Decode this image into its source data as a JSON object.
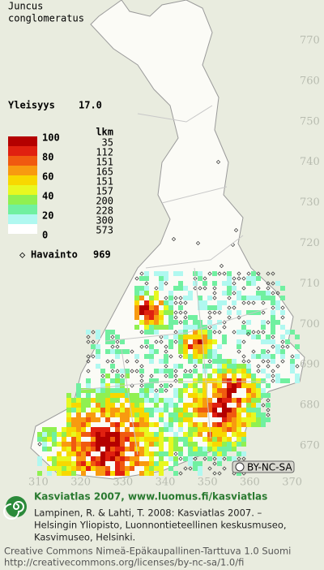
{
  "header": {
    "title_lines": [
      "Juncus",
      "conglomeratus"
    ],
    "frequency_label": "Yleisyys",
    "frequency_value": "17.0"
  },
  "legend": {
    "count_header": "lkm",
    "scale_labels": [
      "100",
      "80",
      "60",
      "40",
      "20",
      "0"
    ],
    "colors": [
      "#b40000",
      "#e02010",
      "#f05a10",
      "#f89a10",
      "#f8d800",
      "#e8f820",
      "#90f050",
      "#70f0a0",
      "#b0f8f0",
      "#ffffff"
    ],
    "counts": [
      "35",
      "112",
      "151",
      "165",
      "151",
      "157",
      "200",
      "228",
      "300",
      "573"
    ],
    "observation_label": "Havainto",
    "observation_count": "969"
  },
  "grid": {
    "northing_labels": [
      "770",
      "760",
      "750",
      "740",
      "730",
      "720",
      "710",
      "700",
      "690",
      "680",
      "670"
    ],
    "easting_labels": [
      "310",
      "320",
      "330",
      "340",
      "350",
      "360",
      "370"
    ]
  },
  "license_badge": "BY-NC-SA",
  "footer": {
    "site": "Kasviatlas 2007, www.luomus.fi/kasviatlas",
    "citation": [
      "Lampinen, R. & Lahti, T. 2008: Kasviatlas 2007. –",
      "Helsingin Yliopisto, Luonnontieteellinen keskusmuseo,",
      "Kasvimuseo, Helsinki."
    ],
    "license": "Creative Commons Nimeä-Epäkaupallinen-Tarttuva 1.0 Suomi",
    "url": "http://creativecommons.org/licenses/by-nc-sa/1.0/fi"
  }
}
